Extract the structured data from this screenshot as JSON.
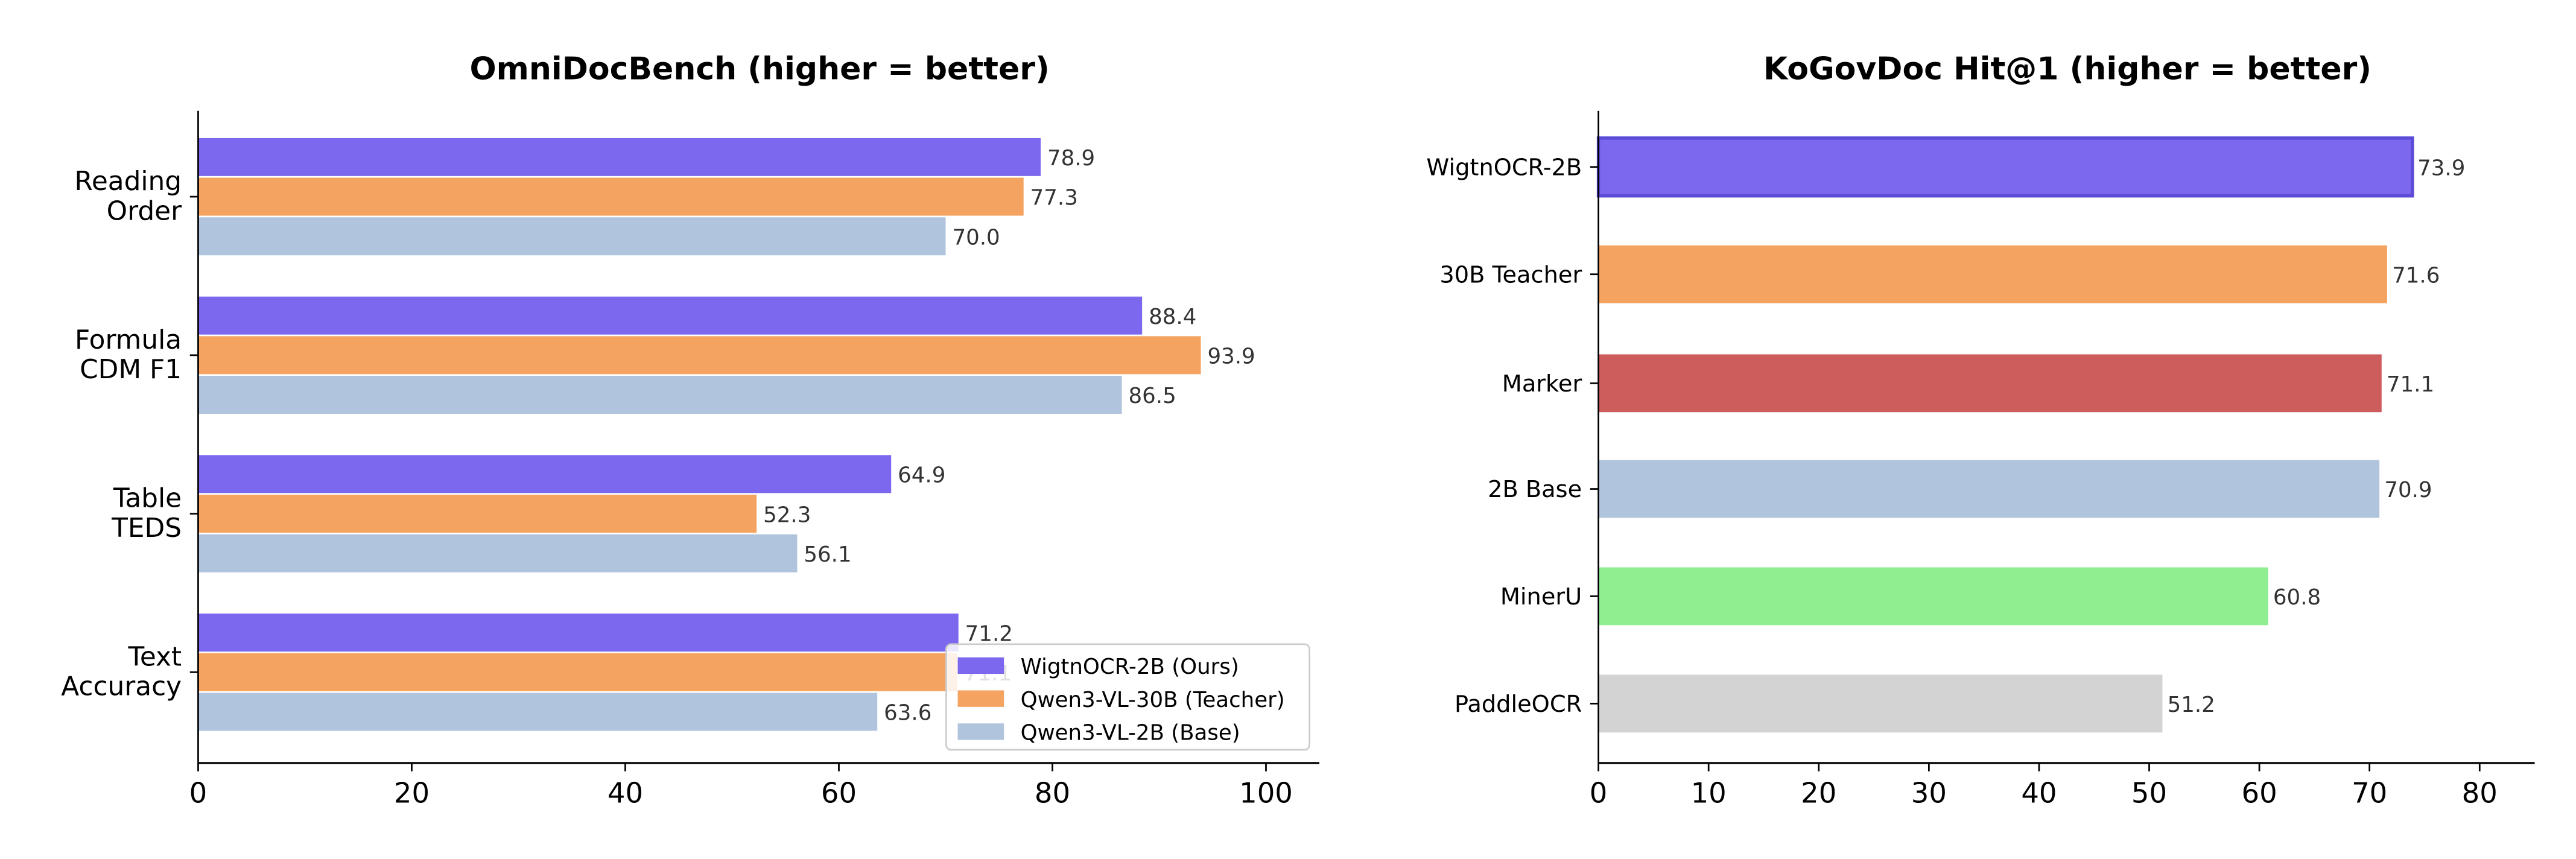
{
  "chart_data": [
    {
      "type": "bar",
      "orientation": "horizontal",
      "title": "OmniDocBench (higher = better)",
      "categories": [
        "Reading\nOrder",
        "Formula\nCDM F1",
        "Table\nTEDS",
        "Text\nAccuracy"
      ],
      "series": [
        {
          "name": "WigtnOCR-2B (Ours)",
          "color": "#7b68ee",
          "values": [
            78.9,
            88.4,
            64.9,
            71.2
          ]
        },
        {
          "name": "Qwen3-VL-30B (Teacher)",
          "color": "#f4a460",
          "values": [
            77.3,
            93.9,
            52.3,
            71.1
          ]
        },
        {
          "name": "Qwen3-VL-2B (Base)",
          "color": "#b0c4de",
          "values": [
            70.0,
            86.5,
            56.1,
            63.6
          ]
        }
      ],
      "xlim": [
        0,
        105
      ],
      "xticks": [
        0,
        20,
        40,
        60,
        80,
        100
      ],
      "legend": "lower-right",
      "grid": false
    },
    {
      "type": "bar",
      "orientation": "horizontal",
      "title": "KoGovDoc Hit@1 (higher = better)",
      "categories": [
        "WigtnOCR-2B",
        "30B Teacher",
        "Marker",
        "2B Base",
        "MinerU",
        "PaddleOCR"
      ],
      "values": [
        73.9,
        71.6,
        71.1,
        70.9,
        60.8,
        51.2
      ],
      "colors": [
        "#7b68ee",
        "#f4a460",
        "#cd5c5c",
        "#b0c4de",
        "#90ee90",
        "#d3d3d3"
      ],
      "highlight_edge": "#5b4bd6",
      "xlim": [
        0,
        85
      ],
      "xticks": [
        0,
        10,
        20,
        30,
        40,
        50,
        60,
        70,
        80
      ],
      "grid": false
    }
  ]
}
